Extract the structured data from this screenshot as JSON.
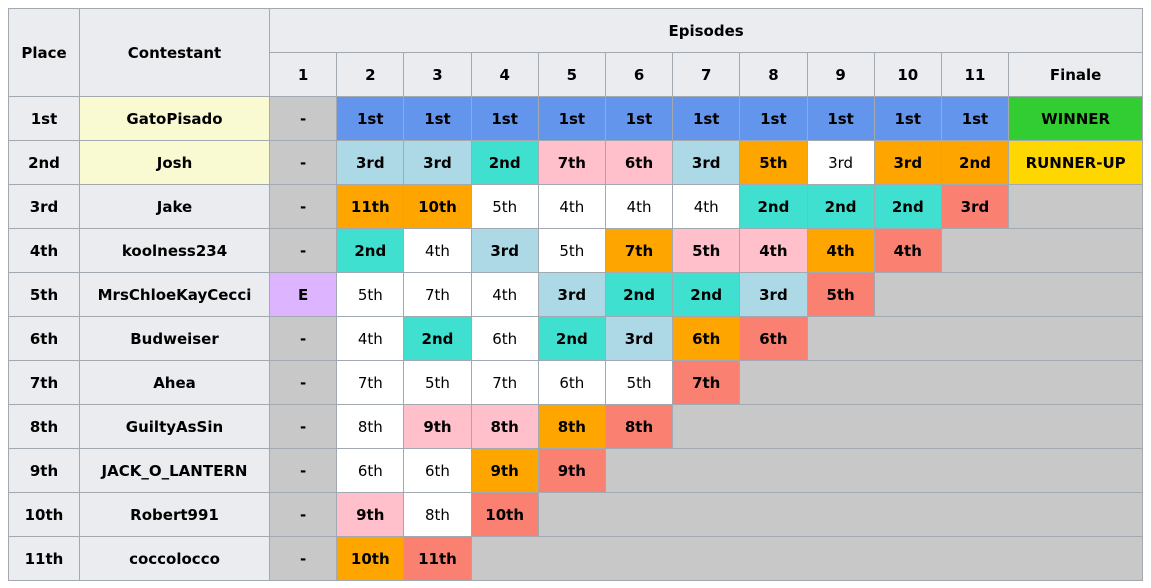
{
  "table": {
    "headers": {
      "place": "Place",
      "contestant": "Contestant",
      "episodes": "Episodes",
      "columns": [
        "1",
        "2",
        "3",
        "4",
        "5",
        "6",
        "7",
        "8",
        "9",
        "10",
        "11",
        "Finale"
      ]
    },
    "empty_color": "#c8c8c8",
    "rows": [
      {
        "place": "1st",
        "contestant": "GatoPisado",
        "highlight": "#fafad2",
        "cells": [
          {
            "text": "-",
            "color": "#c8c8c8"
          },
          {
            "text": "1st",
            "color": "#6495ed"
          },
          {
            "text": "1st",
            "color": "#6495ed"
          },
          {
            "text": "1st",
            "color": "#6495ed"
          },
          {
            "text": "1st",
            "color": "#6495ed"
          },
          {
            "text": "1st",
            "color": "#6495ed"
          },
          {
            "text": "1st",
            "color": "#6495ed"
          },
          {
            "text": "1st",
            "color": "#6495ed"
          },
          {
            "text": "1st",
            "color": "#6495ed"
          },
          {
            "text": "1st",
            "color": "#6495ed"
          },
          {
            "text": "1st",
            "color": "#6495ed"
          },
          {
            "text": "WINNER",
            "color": "#32cd32"
          }
        ]
      },
      {
        "place": "2nd",
        "contestant": "Josh",
        "highlight": "#fafad2",
        "cells": [
          {
            "text": "-",
            "color": "#c8c8c8"
          },
          {
            "text": "3rd",
            "color": "#add8e6"
          },
          {
            "text": "3rd",
            "color": "#add8e6"
          },
          {
            "text": "2nd",
            "color": "#40e0d0"
          },
          {
            "text": "7th",
            "color": "#ffc0cb"
          },
          {
            "text": "6th",
            "color": "#ffc0cb"
          },
          {
            "text": "3rd",
            "color": "#add8e6"
          },
          {
            "text": "5th",
            "color": "#ffa500"
          },
          {
            "text": "3rd",
            "color": "#ffffff"
          },
          {
            "text": "3rd",
            "color": "#ffa500"
          },
          {
            "text": "2nd",
            "color": "#ffa500"
          },
          {
            "text": "RUNNER-UP",
            "color": "#ffd700"
          }
        ]
      },
      {
        "place": "3rd",
        "contestant": "Jake",
        "cells": [
          {
            "text": "-",
            "color": "#c8c8c8"
          },
          {
            "text": "11th",
            "color": "#ffa500"
          },
          {
            "text": "10th",
            "color": "#ffa500"
          },
          {
            "text": "5th",
            "color": "#ffffff"
          },
          {
            "text": "4th",
            "color": "#ffffff"
          },
          {
            "text": "4th",
            "color": "#ffffff"
          },
          {
            "text": "4th",
            "color": "#ffffff"
          },
          {
            "text": "2nd",
            "color": "#40e0d0"
          },
          {
            "text": "2nd",
            "color": "#40e0d0"
          },
          {
            "text": "2nd",
            "color": "#40e0d0"
          },
          {
            "text": "3rd",
            "color": "#fa8072"
          }
        ]
      },
      {
        "place": "4th",
        "contestant": "koolness234",
        "cells": [
          {
            "text": "-",
            "color": "#c8c8c8"
          },
          {
            "text": "2nd",
            "color": "#40e0d0"
          },
          {
            "text": "4th",
            "color": "#ffffff"
          },
          {
            "text": "3rd",
            "color": "#add8e6"
          },
          {
            "text": "5th",
            "color": "#ffffff"
          },
          {
            "text": "7th",
            "color": "#ffa500"
          },
          {
            "text": "5th",
            "color": "#ffc0cb"
          },
          {
            "text": "4th",
            "color": "#ffc0cb"
          },
          {
            "text": "4th",
            "color": "#ffa500"
          },
          {
            "text": "4th",
            "color": "#fa8072"
          }
        ]
      },
      {
        "place": "5th",
        "contestant": "MrsChloeKayCecci",
        "cells": [
          {
            "text": "E",
            "color": "#dcb4ff"
          },
          {
            "text": "5th",
            "color": "#ffffff"
          },
          {
            "text": "7th",
            "color": "#ffffff"
          },
          {
            "text": "4th",
            "color": "#ffffff"
          },
          {
            "text": "3rd",
            "color": "#add8e6"
          },
          {
            "text": "2nd",
            "color": "#40e0d0"
          },
          {
            "text": "2nd",
            "color": "#40e0d0"
          },
          {
            "text": "3rd",
            "color": "#add8e6"
          },
          {
            "text": "5th",
            "color": "#fa8072"
          }
        ]
      },
      {
        "place": "6th",
        "contestant": "Budweiser",
        "cells": [
          {
            "text": "-",
            "color": "#c8c8c8"
          },
          {
            "text": "4th",
            "color": "#ffffff"
          },
          {
            "text": "2nd",
            "color": "#40e0d0"
          },
          {
            "text": "6th",
            "color": "#ffffff"
          },
          {
            "text": "2nd",
            "color": "#40e0d0"
          },
          {
            "text": "3rd",
            "color": "#add8e6"
          },
          {
            "text": "6th",
            "color": "#ffa500"
          },
          {
            "text": "6th",
            "color": "#fa8072"
          }
        ]
      },
      {
        "place": "7th",
        "contestant": "Ahea",
        "cells": [
          {
            "text": "-",
            "color": "#c8c8c8"
          },
          {
            "text": "7th",
            "color": "#ffffff"
          },
          {
            "text": "5th",
            "color": "#ffffff"
          },
          {
            "text": "7th",
            "color": "#ffffff"
          },
          {
            "text": "6th",
            "color": "#ffffff"
          },
          {
            "text": "5th",
            "color": "#ffffff"
          },
          {
            "text": "7th",
            "color": "#fa8072"
          }
        ]
      },
      {
        "place": "8th",
        "contestant": "GuiltyAsSin",
        "cells": [
          {
            "text": "-",
            "color": "#c8c8c8"
          },
          {
            "text": "8th",
            "color": "#ffffff"
          },
          {
            "text": "9th",
            "color": "#ffc0cb"
          },
          {
            "text": "8th",
            "color": "#ffc0cb"
          },
          {
            "text": "8th",
            "color": "#ffa500"
          },
          {
            "text": "8th",
            "color": "#fa8072"
          }
        ]
      },
      {
        "place": "9th",
        "contestant": "JACK_O_LANTERN",
        "cells": [
          {
            "text": "-",
            "color": "#c8c8c8"
          },
          {
            "text": "6th",
            "color": "#ffffff"
          },
          {
            "text": "6th",
            "color": "#ffffff"
          },
          {
            "text": "9th",
            "color": "#ffa500"
          },
          {
            "text": "9th",
            "color": "#fa8072"
          }
        ]
      },
      {
        "place": "10th",
        "contestant": "Robert991",
        "cells": [
          {
            "text": "-",
            "color": "#c8c8c8"
          },
          {
            "text": "9th",
            "color": "#ffc0cb"
          },
          {
            "text": "8th",
            "color": "#ffffff"
          },
          {
            "text": "10th",
            "color": "#fa8072"
          }
        ]
      },
      {
        "place": "11th",
        "contestant": "coccolocco",
        "cells": [
          {
            "text": "-",
            "color": "#c8c8c8"
          },
          {
            "text": "10th",
            "color": "#ffa500"
          },
          {
            "text": "11th",
            "color": "#fa8072"
          }
        ]
      }
    ]
  }
}
